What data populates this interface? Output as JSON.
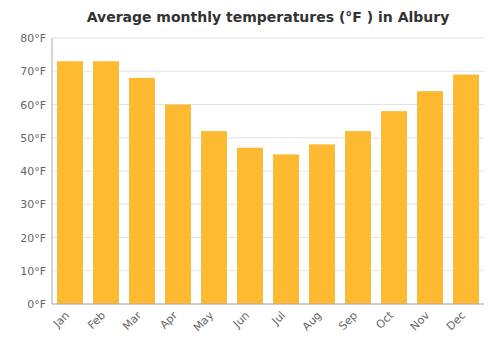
{
  "chart_data": {
    "type": "bar",
    "title": "Average monthly temperatures (°F ) in Albury",
    "categories": [
      "Jan",
      "Feb",
      "Mar",
      "Apr",
      "May",
      "Jun",
      "Jul",
      "Aug",
      "Sep",
      "Oct",
      "Nov",
      "Dec"
    ],
    "values": [
      73,
      73,
      68,
      60,
      52,
      47,
      45,
      48,
      52,
      58,
      64,
      69
    ],
    "color": "#FDB930",
    "ylim": [
      0,
      80
    ],
    "yticks": [
      {
        "value": 0,
        "label": "0°F"
      },
      {
        "value": 10,
        "label": "10°F"
      },
      {
        "value": 20,
        "label": "20°F"
      },
      {
        "value": 30,
        "label": "30°F"
      },
      {
        "value": 40,
        "label": "40°F"
      },
      {
        "value": 50,
        "label": "50°F"
      },
      {
        "value": 60,
        "label": "60°F"
      },
      {
        "value": 70,
        "label": "70°F"
      },
      {
        "value": 80,
        "label": "80°F"
      }
    ],
    "grid": true
  }
}
